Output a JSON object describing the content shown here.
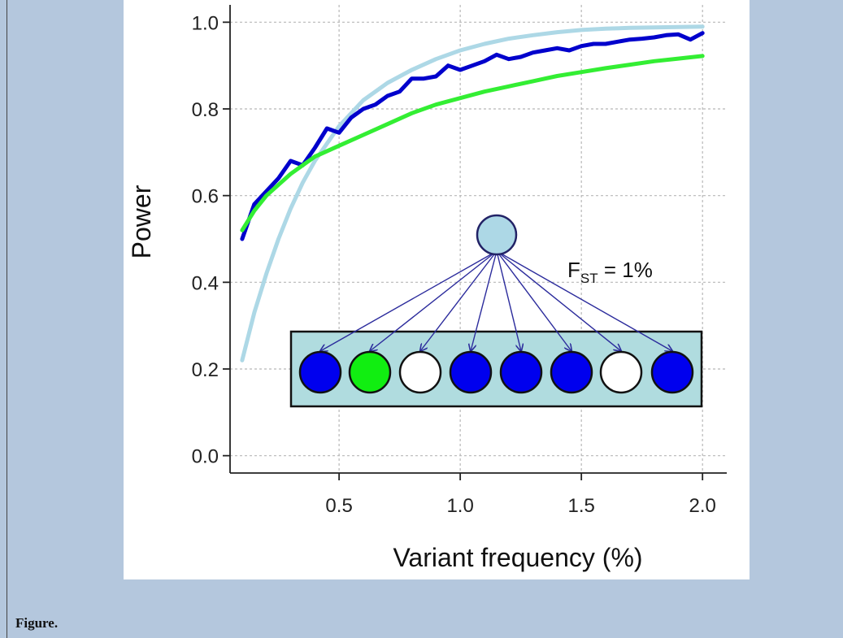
{
  "caption": "Figure.",
  "chart_data": {
    "type": "line",
    "title": "",
    "xlabel": "Variant frequency (%)",
    "ylabel": "Power",
    "xlim": [
      0.05,
      2.1
    ],
    "ylim": [
      -0.04,
      1.04
    ],
    "xticks": [
      0.5,
      1.0,
      1.5,
      2.0
    ],
    "xtick_labels": [
      "0.5",
      "1.0",
      "1.5",
      "2.0"
    ],
    "yticks": [
      0.0,
      0.2,
      0.4,
      0.6,
      0.8,
      1.0
    ],
    "ytick_labels": [
      "0.0",
      "0.2",
      "0.4",
      "0.6",
      "0.8",
      "1.0"
    ],
    "grid": true,
    "series": [
      {
        "color": "#add8e6",
        "x": [
          0.1,
          0.15,
          0.2,
          0.25,
          0.3,
          0.35,
          0.4,
          0.45,
          0.5,
          0.55,
          0.6,
          0.65,
          0.7,
          0.8,
          0.9,
          1.0,
          1.1,
          1.2,
          1.3,
          1.4,
          1.5,
          1.6,
          1.7,
          1.8,
          1.9,
          2.0
        ],
        "y": [
          0.22,
          0.33,
          0.42,
          0.5,
          0.57,
          0.63,
          0.68,
          0.72,
          0.76,
          0.79,
          0.82,
          0.84,
          0.86,
          0.89,
          0.915,
          0.935,
          0.95,
          0.962,
          0.97,
          0.977,
          0.982,
          0.985,
          0.987,
          0.988,
          0.989,
          0.99
        ]
      },
      {
        "color": "#0000cc",
        "x": [
          0.1,
          0.15,
          0.2,
          0.25,
          0.3,
          0.35,
          0.4,
          0.45,
          0.5,
          0.55,
          0.6,
          0.65,
          0.7,
          0.75,
          0.8,
          0.85,
          0.9,
          0.95,
          1.0,
          1.05,
          1.1,
          1.15,
          1.2,
          1.25,
          1.3,
          1.35,
          1.4,
          1.45,
          1.5,
          1.55,
          1.6,
          1.65,
          1.7,
          1.75,
          1.8,
          1.85,
          1.9,
          1.95,
          2.0
        ],
        "y": [
          0.5,
          0.58,
          0.61,
          0.64,
          0.68,
          0.67,
          0.71,
          0.755,
          0.745,
          0.78,
          0.8,
          0.81,
          0.83,
          0.84,
          0.87,
          0.87,
          0.875,
          0.9,
          0.89,
          0.9,
          0.91,
          0.925,
          0.915,
          0.92,
          0.93,
          0.935,
          0.94,
          0.935,
          0.945,
          0.95,
          0.95,
          0.955,
          0.96,
          0.962,
          0.965,
          0.97,
          0.972,
          0.96,
          0.975
        ]
      },
      {
        "color": "#33ee33",
        "x": [
          0.1,
          0.15,
          0.2,
          0.25,
          0.3,
          0.4,
          0.5,
          0.6,
          0.7,
          0.8,
          0.9,
          1.0,
          1.1,
          1.2,
          1.3,
          1.4,
          1.5,
          1.6,
          1.7,
          1.8,
          1.9,
          2.0
        ],
        "y": [
          0.52,
          0.565,
          0.6,
          0.625,
          0.65,
          0.69,
          0.715,
          0.74,
          0.765,
          0.79,
          0.81,
          0.825,
          0.84,
          0.852,
          0.864,
          0.876,
          0.885,
          0.894,
          0.902,
          0.91,
          0.916,
          0.922
        ]
      }
    ],
    "inset": {
      "label_main": "F",
      "label_sub": "ST",
      "label_rest": " = 1%",
      "parent_color": "#add8e6",
      "box_color": "#b0dcdf",
      "arrow_color": "#2b2b9c",
      "child_colors": [
        "#0000ee",
        "#11ee11",
        "#ffffff",
        "#0000ee",
        "#0000ee",
        "#0000ee",
        "#ffffff",
        "#0000ee"
      ]
    }
  }
}
